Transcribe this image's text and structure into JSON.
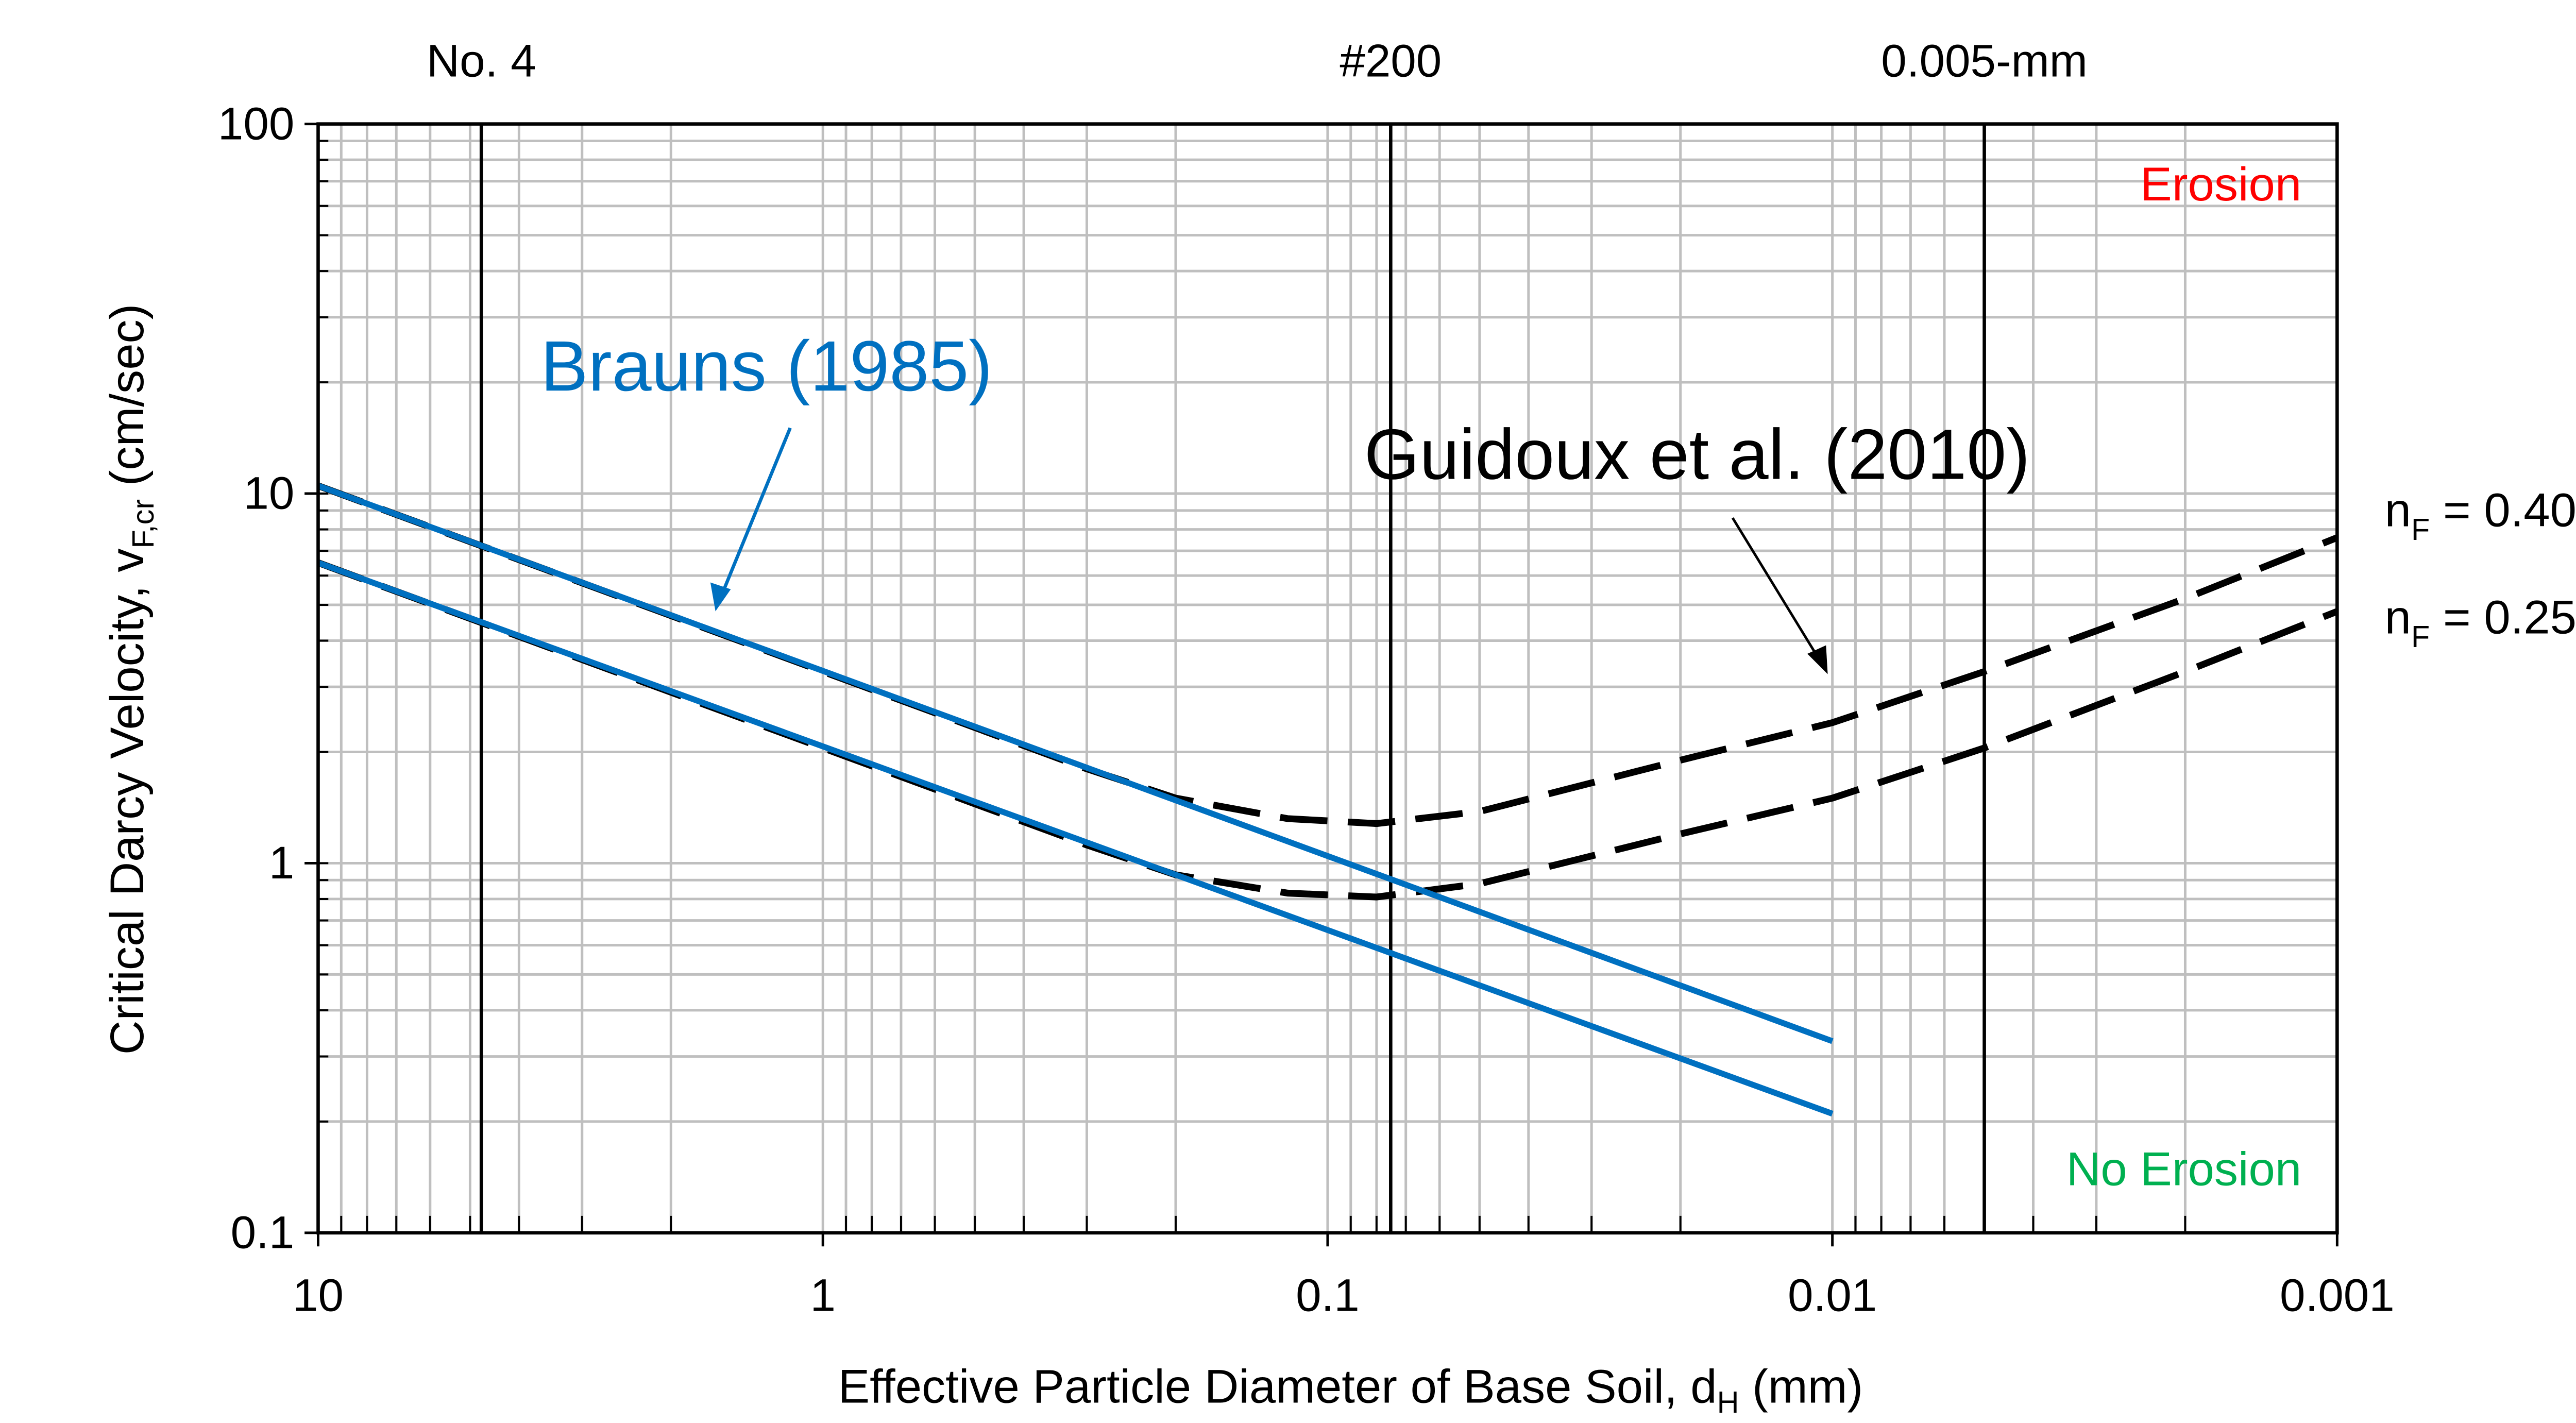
{
  "chart_data": {
    "type": "line",
    "xlabel": "Effective Particle Diameter of Base Soil, d",
    "xlabel_sub": "H",
    "xlabel_unit": " (mm)",
    "ylabel": "Critical Darcy Velocity, v",
    "ylabel_sub": "F,cr",
    "ylabel_unit": "  (cm/sec)",
    "x_scale": "log",
    "y_scale": "log",
    "x_reversed": true,
    "xlim": [
      10,
      0.001
    ],
    "ylim": [
      0.1,
      100
    ],
    "grid": true,
    "x_ticks": [
      {
        "v": 10,
        "label": "10"
      },
      {
        "v": 1,
        "label": "1"
      },
      {
        "v": 0.1,
        "label": "0.1"
      },
      {
        "v": 0.01,
        "label": "0.01"
      },
      {
        "v": 0.001,
        "label": "0.001"
      }
    ],
    "y_ticks": [
      {
        "v": 0.1,
        "label": "0.1"
      },
      {
        "v": 1,
        "label": "1"
      },
      {
        "v": 10,
        "label": "10"
      },
      {
        "v": 100,
        "label": "100"
      }
    ],
    "reference_lines": [
      {
        "x": 4.75,
        "label": "No. 4"
      },
      {
        "x": 0.075,
        "label": "#200"
      },
      {
        "x": 0.005,
        "label": "0.005-mm"
      }
    ],
    "series": [
      {
        "group": "Brauns (1985)",
        "style": "solid",
        "color": "#0070C0",
        "x": [
          10,
          0.01
        ],
        "y": [
          10.5,
          0.33
        ]
      },
      {
        "group": "Brauns (1985)",
        "style": "solid",
        "color": "#0070C0",
        "x": [
          10,
          0.01
        ],
        "y": [
          6.5,
          0.21
        ]
      },
      {
        "group": "Guidoux et al. (2010)",
        "name": "nF = 0.40",
        "style": "dashed",
        "color": "#000000",
        "x": [
          10,
          1,
          0.3,
          0.2,
          0.12,
          0.08,
          0.05,
          0.02,
          0.01,
          0.005,
          0.002,
          0.001
        ],
        "y": [
          10.5,
          3.3,
          1.8,
          1.5,
          1.32,
          1.28,
          1.38,
          1.9,
          2.4,
          3.3,
          5.2,
          7.6
        ]
      },
      {
        "group": "Guidoux et al. (2010)",
        "name": "nF = 0.25",
        "style": "dashed",
        "color": "#000000",
        "x": [
          10,
          1,
          0.3,
          0.2,
          0.12,
          0.08,
          0.05,
          0.02,
          0.01,
          0.005,
          0.002,
          0.001
        ],
        "y": [
          6.5,
          2.05,
          1.12,
          0.93,
          0.83,
          0.81,
          0.88,
          1.2,
          1.5,
          2.05,
          3.3,
          4.8
        ]
      }
    ],
    "annotations": {
      "brauns": "Brauns (1985)",
      "guidoux": "Guidoux et al. (2010)",
      "n040_main": "n",
      "n040_sub": "F",
      "n040_val": " = 0.40",
      "n025_main": "n",
      "n025_sub": "F",
      "n025_val": " = 0.25",
      "erosion": "Erosion",
      "no_erosion": "No Erosion"
    },
    "colors": {
      "brauns": "#0070C0",
      "erosion": "#FF0000",
      "no_erosion": "#00B050",
      "grid": "#BFBFBF"
    }
  }
}
